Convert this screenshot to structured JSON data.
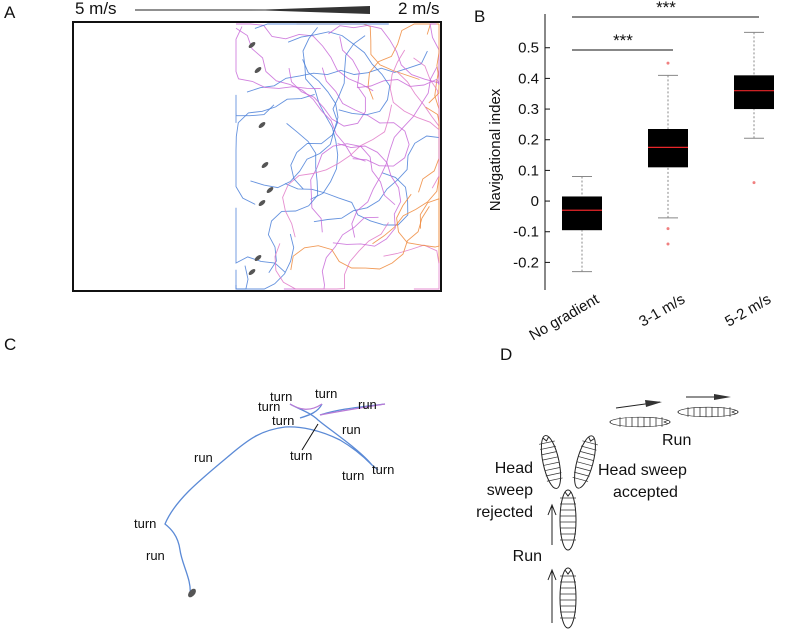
{
  "panels": {
    "a": {
      "letter": "A",
      "left_speed": "5 m/s",
      "right_speed": "2 m/s"
    },
    "c": {
      "letter": "C",
      "labels": [
        "turn",
        "turn",
        "turn",
        "turn",
        "run",
        "run",
        "turn",
        "turn",
        "turn",
        "run",
        "turn",
        "run"
      ]
    },
    "d": {
      "letter": "D",
      "run_top": "Run",
      "head_sweep_accepted": [
        "Head sweep",
        "accepted"
      ],
      "head_sweep_rejected": [
        "Head",
        "sweep",
        "rejected"
      ],
      "run_bottom": "Run"
    }
  },
  "chart_data": {
    "type": "box",
    "letter": "B",
    "y_label": "Navigational index",
    "categories": [
      "No gradient",
      "3-1 m/s",
      "5-2 m/s"
    ],
    "boxes": [
      {
        "whisker_low": -0.23,
        "q1": -0.095,
        "median": -0.03,
        "q3": 0.015,
        "whisker_high": 0.08,
        "outliers": []
      },
      {
        "whisker_low": -0.055,
        "q1": 0.11,
        "median": 0.175,
        "q3": 0.235,
        "whisker_high": 0.41,
        "outliers": [
          0.45,
          -0.09,
          -0.14
        ]
      },
      {
        "whisker_low": 0.205,
        "q1": 0.3,
        "median": 0.36,
        "q3": 0.41,
        "whisker_high": 0.55,
        "outliers": [
          0.06
        ]
      }
    ],
    "box_color": "#000000",
    "median_color": "#e8262a",
    "whisker_color": "#888888",
    "outlier_color": "#f08080",
    "significance": [
      "***",
      "***"
    ],
    "ylim": [
      -0.29,
      0.61
    ],
    "yticks": [
      -0.2,
      -0.1,
      0,
      0.1,
      0.2,
      0.3,
      0.4,
      0.5
    ]
  }
}
